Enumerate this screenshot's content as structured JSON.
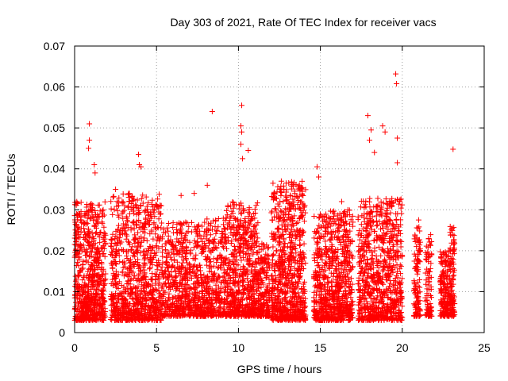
{
  "chart_data": {
    "type": "scatter",
    "title": "Day 303 of 2021, Rate Of TEC Index for receiver vacs",
    "xlabel": "GPS time / hours",
    "ylabel": "ROTI / TECUs",
    "xlim": [
      0,
      25
    ],
    "ylim": [
      0,
      0.07
    ],
    "x_ticks": [
      "0",
      "5",
      "10",
      "15",
      "20",
      "25"
    ],
    "y_ticks": [
      "0",
      "0.01",
      "0.02",
      "0.03",
      "0.04",
      "0.05",
      "0.06",
      "0.07"
    ],
    "grid": true,
    "marker": "+",
    "color": "#ff0000",
    "outliers": [
      {
        "x": 0.9,
        "y": 0.051
      },
      {
        "x": 0.9,
        "y": 0.047
      },
      {
        "x": 0.85,
        "y": 0.045
      },
      {
        "x": 1.2,
        "y": 0.041
      },
      {
        "x": 1.25,
        "y": 0.039
      },
      {
        "x": 3.9,
        "y": 0.0435
      },
      {
        "x": 3.95,
        "y": 0.041
      },
      {
        "x": 4.05,
        "y": 0.0405
      },
      {
        "x": 8.4,
        "y": 0.054
      },
      {
        "x": 10.2,
        "y": 0.0555
      },
      {
        "x": 10.15,
        "y": 0.0505
      },
      {
        "x": 10.2,
        "y": 0.049
      },
      {
        "x": 10.15,
        "y": 0.046
      },
      {
        "x": 10.6,
        "y": 0.0445
      },
      {
        "x": 10.25,
        "y": 0.0425
      },
      {
        "x": 14.8,
        "y": 0.0405
      },
      {
        "x": 14.9,
        "y": 0.038
      },
      {
        "x": 17.9,
        "y": 0.053
      },
      {
        "x": 18.1,
        "y": 0.0495
      },
      {
        "x": 18.0,
        "y": 0.047
      },
      {
        "x": 18.3,
        "y": 0.044
      },
      {
        "x": 18.8,
        "y": 0.0505
      },
      {
        "x": 18.95,
        "y": 0.049
      },
      {
        "x": 19.6,
        "y": 0.0632
      },
      {
        "x": 19.65,
        "y": 0.0608
      },
      {
        "x": 19.7,
        "y": 0.0475
      },
      {
        "x": 19.7,
        "y": 0.0415
      },
      {
        "x": 23.1,
        "y": 0.0448
      },
      {
        "x": 6.5,
        "y": 0.0335
      },
      {
        "x": 7.3,
        "y": 0.034
      },
      {
        "x": 8.1,
        "y": 0.036
      },
      {
        "x": 2.5,
        "y": 0.035
      },
      {
        "x": 16.3,
        "y": 0.032
      },
      {
        "x": 21.0,
        "y": 0.0275
      }
    ],
    "clusters": [
      {
        "x0": 0.0,
        "x1": 1.9,
        "ymin": 0.003,
        "ymax": 0.032,
        "n": 700
      },
      {
        "x0": 2.2,
        "x1": 5.3,
        "ymin": 0.003,
        "ymax": 0.034,
        "n": 900
      },
      {
        "x0": 5.3,
        "x1": 7.4,
        "ymin": 0.004,
        "ymax": 0.027,
        "n": 500
      },
      {
        "x0": 7.4,
        "x1": 9.2,
        "ymin": 0.004,
        "ymax": 0.028,
        "n": 450
      },
      {
        "x0": 9.2,
        "x1": 11.2,
        "ymin": 0.004,
        "ymax": 0.032,
        "n": 650
      },
      {
        "x0": 11.2,
        "x1": 11.9,
        "ymin": 0.004,
        "ymax": 0.022,
        "n": 200
      },
      {
        "x0": 12.0,
        "x1": 14.1,
        "ymin": 0.003,
        "ymax": 0.037,
        "n": 800
      },
      {
        "x0": 14.6,
        "x1": 15.5,
        "ymin": 0.003,
        "ymax": 0.029,
        "n": 300
      },
      {
        "x0": 15.5,
        "x1": 17.0,
        "ymin": 0.003,
        "ymax": 0.03,
        "n": 500
      },
      {
        "x0": 17.3,
        "x1": 20.0,
        "ymin": 0.003,
        "ymax": 0.033,
        "n": 800
      },
      {
        "x0": 20.7,
        "x1": 21.1,
        "ymin": 0.004,
        "ymax": 0.026,
        "n": 110
      },
      {
        "x0": 21.4,
        "x1": 21.8,
        "ymin": 0.004,
        "ymax": 0.024,
        "n": 90
      },
      {
        "x0": 22.3,
        "x1": 22.9,
        "ymin": 0.004,
        "ymax": 0.02,
        "n": 180
      },
      {
        "x0": 22.9,
        "x1": 23.2,
        "ymin": 0.004,
        "ymax": 0.026,
        "n": 110
      }
    ]
  }
}
